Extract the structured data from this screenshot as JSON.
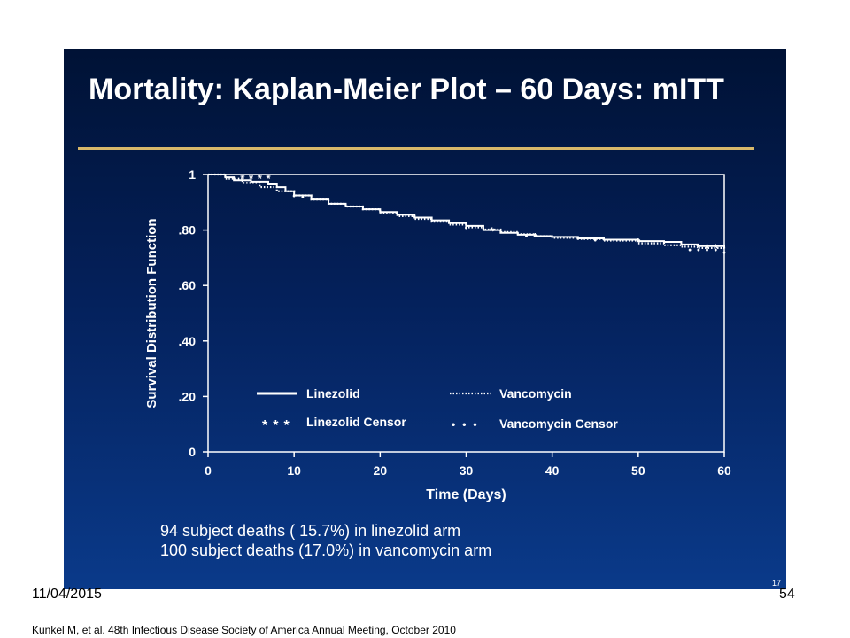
{
  "slide": {
    "title": "Mortality: Kaplan-Meier Plot – 60 Days: mITT",
    "summary": [
      "94 subject deaths ( 15.7%) in linezolid arm",
      "100 subject deaths (17.0%) in vancomycin arm"
    ],
    "slide_number": "17",
    "colors": {
      "background": "#04205a",
      "rule": "#d8b86a",
      "text": "#ffffff"
    }
  },
  "footer": {
    "date": "11/04/2015",
    "page": "54",
    "citation": "Kunkel M, et al. 48th Infectious Disease Society of America Annual Meeting, October 2010"
  },
  "chart_data": {
    "type": "line",
    "title": "",
    "xlabel": "Time (Days)",
    "ylabel": "Survival Distribution Function",
    "xlim": [
      0,
      60
    ],
    "ylim": [
      0,
      1
    ],
    "x_ticks": [
      0,
      10,
      20,
      30,
      40,
      50,
      60
    ],
    "x_tick_labels": [
      "0",
      "10",
      "20",
      "30",
      "40",
      "50",
      "60"
    ],
    "y_ticks": [
      0,
      0.2,
      0.4,
      0.6,
      0.8,
      1
    ],
    "y_tick_labels": [
      "0",
      ".20",
      ".40",
      ".60",
      ".80",
      "1"
    ],
    "grid": false,
    "series": [
      {
        "name": "Linezolid",
        "style": "solid",
        "x": [
          0,
          2,
          3,
          5,
          7,
          8,
          9,
          10,
          12,
          14,
          16,
          18,
          20,
          22,
          24,
          26,
          28,
          30,
          32,
          34,
          36,
          38,
          40,
          43,
          46,
          50,
          53,
          55,
          57,
          60
        ],
        "y": [
          1,
          0.99,
          0.98,
          0.975,
          0.965,
          0.955,
          0.94,
          0.925,
          0.91,
          0.895,
          0.885,
          0.875,
          0.865,
          0.855,
          0.845,
          0.835,
          0.825,
          0.815,
          0.8,
          0.79,
          0.783,
          0.778,
          0.775,
          0.77,
          0.765,
          0.76,
          0.757,
          0.748,
          0.742,
          0.735
        ]
      },
      {
        "name": "Vancomycin",
        "style": "dotted",
        "x": [
          0,
          2,
          4,
          6,
          8,
          10,
          12,
          14,
          16,
          18,
          20,
          22,
          24,
          26,
          28,
          30,
          32,
          34,
          36,
          38,
          40,
          43,
          46,
          50,
          53,
          55,
          57,
          60
        ],
        "y": [
          1,
          0.985,
          0.97,
          0.955,
          0.94,
          0.925,
          0.91,
          0.895,
          0.885,
          0.875,
          0.86,
          0.85,
          0.84,
          0.83,
          0.82,
          0.81,
          0.802,
          0.793,
          0.785,
          0.778,
          0.772,
          0.768,
          0.762,
          0.752,
          0.745,
          0.74,
          0.735,
          0.728
        ]
      }
    ],
    "censor_markers": [
      {
        "name": "Linezolid Censor",
        "symbol": "*",
        "x": [
          4,
          5,
          6,
          7,
          33,
          38,
          50,
          57,
          58,
          59
        ],
        "y": [
          0.99,
          0.99,
          0.99,
          0.99,
          0.8,
          0.78,
          0.76,
          0.74,
          0.74,
          0.74
        ]
      },
      {
        "name": "Vancomycin Censor",
        "symbol": "•",
        "x": [
          10,
          11,
          30,
          37,
          45,
          56,
          57,
          58,
          59,
          60
        ],
        "y": [
          0.925,
          0.92,
          0.81,
          0.78,
          0.765,
          0.73,
          0.73,
          0.73,
          0.73,
          0.72
        ]
      }
    ],
    "legend": {
      "position": "bottom-center",
      "entries": [
        "Linezolid",
        "Vancomycin",
        "Linezolid Censor",
        "Vancomycin Censor"
      ]
    }
  }
}
